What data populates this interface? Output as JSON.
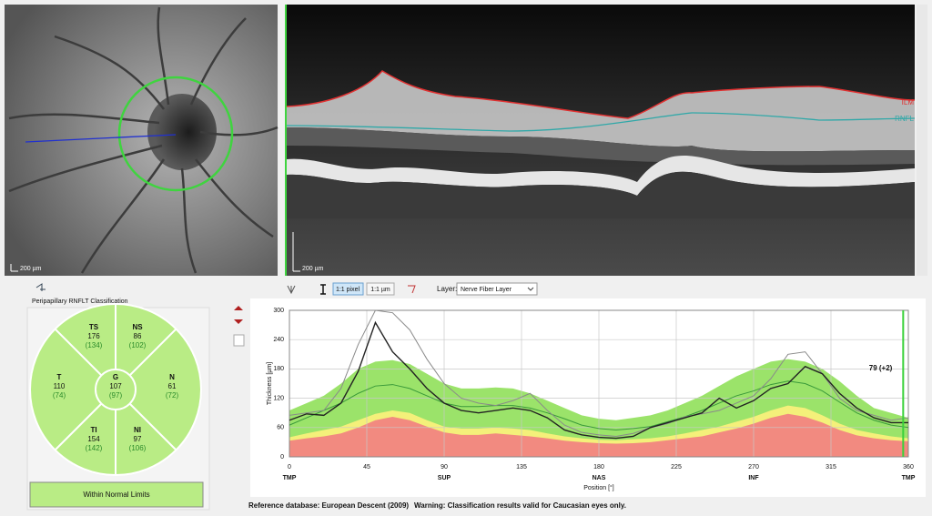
{
  "fundus": {
    "scale_label": "200 µm"
  },
  "bscan": {
    "scale_label": "200 µm",
    "ilm_label": "ILM",
    "rnfl_label": "RNFL"
  },
  "toolbar": {
    "zoom_pixel": "1:1 pixel",
    "zoom_um": "1:1 µm",
    "layer_label": "Layer:",
    "layer_value": "Nerve Fiber Layer"
  },
  "classification": {
    "title": "Peripapillary RNFLT Classification",
    "sectors": [
      {
        "name": "TS",
        "value": 176,
        "reference": "(134)"
      },
      {
        "name": "NS",
        "value": 86,
        "reference": "(102)"
      },
      {
        "name": "T",
        "value": 110,
        "reference": "(74)"
      },
      {
        "name": "G",
        "value": 107,
        "reference": "(97)"
      },
      {
        "name": "N",
        "value": 61,
        "reference": "(72)"
      },
      {
        "name": "TI",
        "value": 154,
        "reference": "(142)"
      },
      {
        "name": "NI",
        "value": 97,
        "reference": "(106)"
      }
    ],
    "result": "Within Normal Limits"
  },
  "chart_data": {
    "type": "line",
    "ylabel": "Thickness [µm]",
    "xlabel": "Position [°]",
    "xlim": [
      0,
      360
    ],
    "xticks": [
      0,
      45,
      90,
      135,
      180,
      225,
      270,
      315,
      360
    ],
    "ylim": [
      0,
      300
    ],
    "yticks": [
      0,
      60,
      120,
      180,
      240,
      300
    ],
    "grid": true,
    "sector_labels": [
      {
        "x": 0,
        "label": "TMP"
      },
      {
        "x": 90,
        "label": "SUP"
      },
      {
        "x": 180,
        "label": "NAS"
      },
      {
        "x": 270,
        "label": "INF"
      },
      {
        "x": 360,
        "label": "TMP"
      }
    ],
    "cursor": {
      "x": 357,
      "label": "79 (+2)",
      "color": "#3ad13a"
    },
    "x": [
      0,
      10,
      20,
      30,
      40,
      50,
      60,
      70,
      80,
      90,
      100,
      110,
      120,
      130,
      140,
      150,
      160,
      170,
      180,
      190,
      200,
      210,
      220,
      230,
      240,
      250,
      260,
      270,
      280,
      290,
      300,
      310,
      320,
      330,
      340,
      350,
      360
    ],
    "bands": [
      {
        "color": "#9be36a",
        "values": [
          95,
          110,
          125,
          150,
          180,
          195,
          198,
          190,
          170,
          150,
          140,
          140,
          142,
          140,
          130,
          115,
          100,
          85,
          78,
          75,
          80,
          85,
          95,
          110,
          125,
          145,
          165,
          180,
          195,
          200,
          195,
          180,
          155,
          125,
          100,
          90,
          80
        ]
      },
      {
        "color": "#f4f07a",
        "values": [
          40,
          48,
          55,
          62,
          75,
          88,
          95,
          90,
          75,
          62,
          58,
          58,
          60,
          58,
          55,
          48,
          42,
          38,
          35,
          34,
          36,
          38,
          42,
          48,
          55,
          62,
          72,
          82,
          95,
          105,
          100,
          85,
          68,
          55,
          48,
          42,
          38
        ]
      },
      {
        "color": "#f28a80",
        "values": [
          33,
          38,
          42,
          48,
          60,
          75,
          82,
          75,
          62,
          50,
          45,
          45,
          48,
          45,
          42,
          38,
          33,
          30,
          28,
          27,
          28,
          30,
          34,
          38,
          42,
          50,
          58,
          68,
          80,
          88,
          82,
          70,
          55,
          44,
          38,
          34,
          32
        ]
      }
    ],
    "series": [
      {
        "color": "#3a9a3a",
        "width": 1,
        "values": [
          65,
          80,
          95,
          110,
          130,
          145,
          148,
          140,
          125,
          110,
          103,
          103,
          105,
          105,
          100,
          90,
          78,
          65,
          58,
          55,
          58,
          62,
          72,
          82,
          95,
          110,
          125,
          135,
          148,
          155,
          150,
          135,
          112,
          90,
          75,
          65,
          60
        ]
      },
      {
        "color": "#8a8a8a",
        "width": 1,
        "values": [
          85,
          90,
          95,
          140,
          230,
          300,
          295,
          260,
          200,
          150,
          120,
          110,
          105,
          115,
          130,
          95,
          65,
          50,
          45,
          42,
          48,
          60,
          68,
          82,
          88,
          95,
          110,
          125,
          160,
          210,
          215,
          170,
          120,
          95,
          85,
          75,
          80
        ]
      },
      {
        "color": "#222222",
        "width": 1.4,
        "values": [
          75,
          88,
          85,
          110,
          175,
          275,
          215,
          180,
          140,
          110,
          95,
          90,
          95,
          100,
          95,
          80,
          55,
          45,
          40,
          38,
          42,
          60,
          70,
          80,
          90,
          120,
          100,
          115,
          140,
          150,
          185,
          170,
          130,
          100,
          80,
          70,
          70
        ]
      }
    ]
  },
  "footer": {
    "reference": "Reference database: European Descent (2009)",
    "warning": "Warning: Classification results valid for Caucasian eyes only."
  }
}
